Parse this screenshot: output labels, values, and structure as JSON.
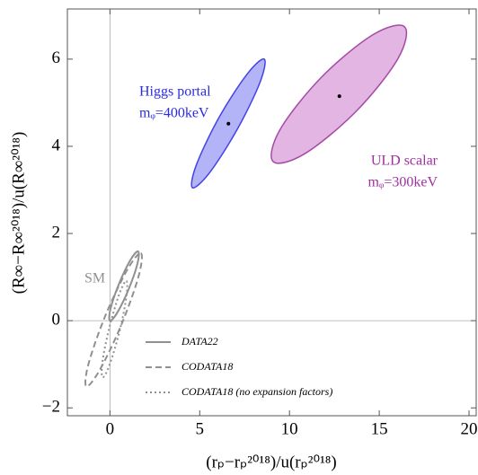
{
  "chart_data": {
    "type": "contour",
    "x_label": "(rₚ−rₚ²⁰¹⁸)/u(rₚ²⁰¹⁸)",
    "y_label": "(R∞−R∞²⁰¹⁸)/u(R∞²⁰¹⁸)",
    "xlim": [
      -2.37,
      20.4
    ],
    "ylim": [
      -2.18,
      7.15
    ],
    "xticks": [
      0,
      5,
      10,
      15,
      20
    ],
    "yticks": [
      {
        "value": -2,
        "label": "−2"
      },
      0,
      2,
      4,
      6
    ],
    "series": [
      {
        "color": "#4343e6",
        "fill": "#a6a6f7",
        "dash": "solid",
        "x": [
          8.59,
          8.37,
          7.12,
          5.56,
          4.6,
          4.81,
          6.06,
          7.63
        ],
        "y": [
          6.0,
          5.48,
          4.41,
          3.4,
          3.05,
          3.57,
          4.65,
          5.65
        ]
      },
      {
        "color": "#a64aa6",
        "fill": "#dda8dd",
        "dash": "solid",
        "x": [
          16.41,
          16.04,
          13.73,
          10.85,
          9.09,
          9.47,
          11.77,
          14.65
        ],
        "y": [
          6.74,
          6.01,
          4.81,
          3.83,
          3.65,
          4.38,
          5.58,
          6.56
        ]
      },
      {
        "name": "DATA22",
        "color": "#909090",
        "dash": "solid",
        "x": [
          1.57,
          1.54,
          1.07,
          0.43,
          0,
          0.03,
          0.5,
          1.14
        ],
        "y": [
          1.59,
          1.32,
          0.75,
          0.2,
          0,
          0.27,
          0.84,
          1.39
        ]
      },
      {
        "name": "CODATA18",
        "color": "#909090",
        "dash": "dashed",
        "x": [
          1.72,
          1.61,
          0.67,
          -0.54,
          -1.31,
          -1.2,
          -0.27,
          0.94
        ],
        "y": [
          1.55,
          1.04,
          -0.06,
          -1.11,
          -1.51,
          -1.0,
          0.1,
          1.15
        ]
      },
      {
        "name": "CODATA18 (no expansion factors)",
        "color": "#909090",
        "dash": "dotted",
        "x": [
          0.91,
          0.92,
          0.55,
          -0.01,
          -0.4,
          -0.42,
          -0.04,
          0.51
        ],
        "y": [
          0.91,
          0.56,
          -0.22,
          -1.0,
          -1.3,
          -0.95,
          -0.17,
          0.6
        ]
      }
    ],
    "points": {
      "color": "#000000",
      "x": [
        6.6,
        12.78
      ],
      "y": [
        4.52,
        5.15
      ]
    },
    "annotations": [
      {
        "text": "Higgs portal",
        "color": "#2a2ae6"
      },
      {
        "text": "mᵩ=400keV",
        "color": "#2a2ae6"
      },
      {
        "text": "ULD scalar",
        "color": "#a030a0"
      },
      {
        "text": "mᵩ=300keV",
        "color": "#a030a0"
      },
      {
        "text": "SM",
        "color": "#909090"
      }
    ]
  }
}
